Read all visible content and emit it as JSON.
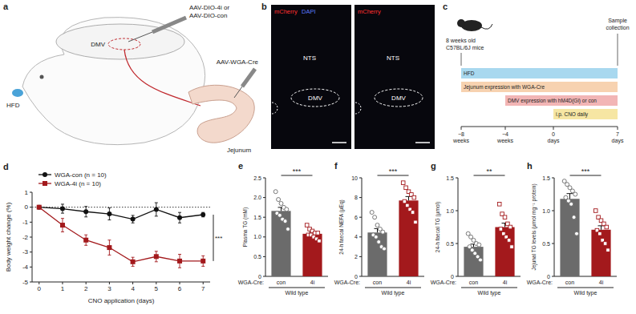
{
  "figure": {
    "a": {
      "label": "a",
      "virus_brain": [
        "AAV-DIO-4i or",
        "AAV-DIO-con"
      ],
      "region": "DMV",
      "diet": "HFD",
      "gut": "Jejunum",
      "virus_gut": "AAV-WGA-Cre"
    },
    "b": {
      "label": "b",
      "channels": [
        {
          "name": "mCherry",
          "color": "#ff3030"
        },
        {
          "name": "DAPI",
          "color": "#5a78ff"
        }
      ],
      "regions": [
        "NTS",
        "DMV"
      ]
    },
    "c": {
      "label": "c",
      "start": [
        "8 weeks old",
        "C57BL/6J mice"
      ],
      "end": [
        "Sample",
        "collection"
      ],
      "ticks": [
        {
          "value": "−8",
          "unit": "weeks"
        },
        {
          "value": "−4",
          "unit": "weeks"
        },
        {
          "value": "0",
          "unit": "days"
        },
        {
          "value": "7",
          "unit": "days"
        }
      ],
      "bars": [
        {
          "label": "HFD",
          "from": "−8",
          "color": "#a8d8ef"
        },
        {
          "label": "Jejunum expression with WGA-Cre",
          "from": "−8",
          "color": "#f7d2b0"
        },
        {
          "label": "DMV expression with hM4D(Gi) or con",
          "from": "−4",
          "color": "#f2b5b5"
        },
        {
          "label": "i.p. CNO daily",
          "from": "0",
          "color": "#f6e6a3"
        }
      ]
    }
  },
  "chart_data": [
    {
      "panel": "d",
      "type": "line",
      "x": [
        0,
        1,
        2,
        3,
        4,
        5,
        6,
        7
      ],
      "xlim": [
        -0.3,
        7.3
      ],
      "xticks": [
        0,
        1,
        2,
        3,
        4,
        5,
        6,
        7
      ],
      "ylim": [
        -5,
        1
      ],
      "yticks": [
        -5,
        -4,
        -3,
        -2,
        -1,
        0,
        1
      ],
      "x_label": "CNO application (days)",
      "y_label": "Body weight change (%)",
      "legend": "top left",
      "hline": 0,
      "significance": "***",
      "series": [
        {
          "name": "WGA-con (n = 10)",
          "color": "#111111",
          "marker": "circle",
          "values": [
            0,
            -0.1,
            -0.3,
            -0.45,
            -0.8,
            -0.15,
            -0.7,
            -0.5
          ],
          "errors": [
            0,
            0.3,
            0.35,
            0.4,
            0.25,
            0.45,
            0.35,
            0.15
          ]
        },
        {
          "name": "WGA-4i (n = 10)",
          "color": "#a3191c",
          "marker": "square",
          "values": [
            0,
            -1.2,
            -2.2,
            -2.7,
            -3.65,
            -3.3,
            -3.6,
            -3.6
          ],
          "errors": [
            0,
            0.45,
            0.35,
            0.5,
            0.3,
            0.35,
            0.45,
            0.35
          ]
        }
      ]
    },
    {
      "panel": "e",
      "type": "bar",
      "y_label": "Plasma TG (mM)",
      "categories": [
        "con",
        "4i"
      ],
      "category_title": "WGA-Cre:",
      "group_label": "Wild type",
      "values": [
        1.66,
        1.08
      ],
      "errors": [
        0.09,
        0.04
      ],
      "colors": [
        "#6b6b6b",
        "#a3191c"
      ],
      "points": [
        [
          2.15,
          1.95,
          1.85,
          1.75,
          1.7,
          1.6,
          1.55,
          1.45,
          1.4,
          1.2
        ],
        [
          1.3,
          1.2,
          1.15,
          1.1,
          1.1,
          1.05,
          1.05,
          1.0,
          0.95,
          0.9
        ]
      ],
      "significance": "***",
      "ylim": [
        0,
        2.5
      ],
      "yticks": [
        0,
        0.5,
        {
          "value": 1,
          "label": "1.0"
        },
        1.5,
        {
          "value": 2,
          "label": "2.0"
        },
        2.5
      ]
    },
    {
      "panel": "f",
      "type": "bar",
      "y_label": "24-h faecal NEFA (µEq)",
      "categories": [
        "con",
        "4i"
      ],
      "category_title": "WGA-Cre:",
      "group_label": "Wild type",
      "values": [
        4.45,
        7.7
      ],
      "errors": [
        0.4,
        0.4
      ],
      "colors": [
        "#6b6b6b",
        "#a3191c"
      ],
      "points": [
        [
          6.5,
          6.0,
          5.2,
          4.8,
          4.5,
          4.2,
          4.0,
          3.5,
          3.0,
          2.8
        ],
        [
          9.5,
          9.0,
          8.6,
          8.3,
          8.0,
          7.6,
          7.2,
          6.8,
          6.5,
          5.5
        ]
      ],
      "significance": "***",
      "ylim": [
        0,
        10
      ],
      "yticks": [
        0,
        2,
        4,
        6,
        8,
        10
      ]
    },
    {
      "panel": "g",
      "type": "bar",
      "y_label": "24-h faecal TG (µmol)",
      "categories": [
        "con",
        "4i"
      ],
      "category_title": "WGA-Cre:",
      "group_label": "Wild type",
      "values": [
        0.45,
        0.75
      ],
      "errors": [
        0.04,
        0.06
      ],
      "colors": [
        "#6b6b6b",
        "#a3191c"
      ],
      "points": [
        [
          0.65,
          0.6,
          0.55,
          0.5,
          0.48,
          0.45,
          0.4,
          0.35,
          0.3,
          0.25
        ],
        [
          1.1,
          0.95,
          0.9,
          0.8,
          0.75,
          0.72,
          0.65,
          0.6,
          0.55,
          0.45
        ]
      ],
      "significance": "**",
      "ylim": [
        0,
        1.5
      ],
      "yticks": [
        0,
        0.5,
        {
          "value": 1,
          "label": "1.0"
        },
        1.5
      ]
    },
    {
      "panel": "h",
      "type": "bar",
      "y_label": "Jejunal TG levels (µmol mg⁻¹ protein)",
      "categories": [
        "con",
        "4i"
      ],
      "category_title": "WGA-Cre:",
      "group_label": "Wild type",
      "values": [
        1.18,
        0.71
      ],
      "errors": [
        0.08,
        0.06
      ],
      "colors": [
        "#6b6b6b",
        "#a3191c"
      ],
      "points": [
        [
          1.45,
          1.4,
          1.35,
          1.3,
          1.25,
          1.2,
          1.15,
          1.1,
          0.9,
          0.65
        ],
        [
          1.0,
          0.9,
          0.85,
          0.8,
          0.75,
          0.7,
          0.65,
          0.55,
          0.5,
          0.4
        ]
      ],
      "significance": "***",
      "ylim": [
        0,
        1.5
      ],
      "yticks": [
        0,
        0.5,
        {
          "value": 1,
          "label": "1.0"
        },
        1.5
      ]
    }
  ]
}
